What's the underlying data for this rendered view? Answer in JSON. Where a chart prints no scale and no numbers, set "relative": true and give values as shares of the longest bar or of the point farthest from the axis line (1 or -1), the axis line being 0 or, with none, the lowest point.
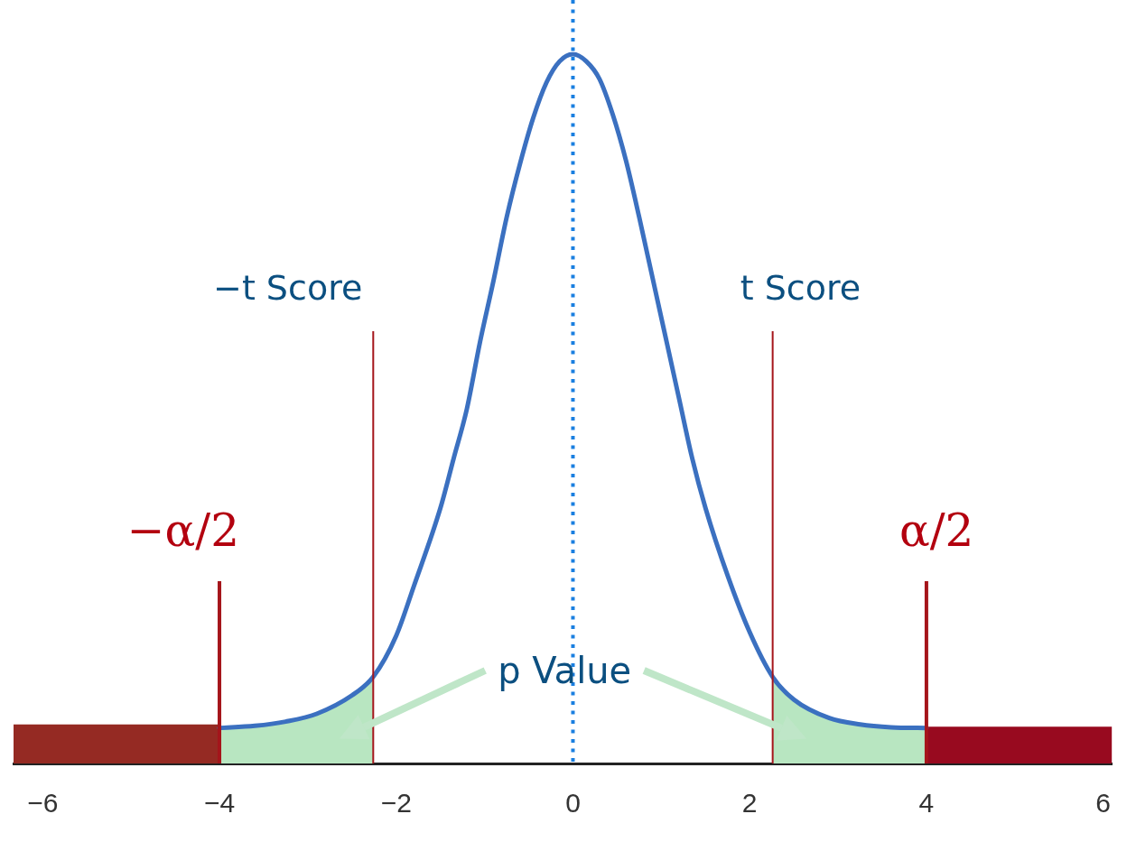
{
  "chart_data": {
    "type": "line",
    "relative": true,
    "marker": "none",
    "xlim": [
      -6.33,
      6.1
    ],
    "xticks": [
      {
        "value": -6,
        "label": "−6"
      },
      {
        "value": -4,
        "label": "−4"
      },
      {
        "value": -2,
        "label": "−2"
      },
      0,
      2,
      4,
      6
    ],
    "series": [
      {
        "type": "line",
        "color": "#3b70c0",
        "x": [
          -4,
          -3.6,
          -3.25,
          -2.9,
          -2.5,
          -2.26,
          -2,
          -1.8,
          -1.5,
          -1.35,
          -1.2,
          -1.05,
          -0.9,
          -0.75,
          -0.6,
          -0.45,
          -0.3,
          -0.15,
          0,
          0.15,
          0.3,
          0.45,
          0.6,
          0.75,
          0.9,
          1.05,
          1.2,
          1.35,
          1.5,
          1.75,
          2,
          2.26,
          2.5,
          2.9,
          3.25,
          3.6,
          4
        ],
        "values": [
          0.05,
          0.053,
          0.059,
          0.07,
          0.096,
          0.122,
          0.18,
          0.25,
          0.36,
          0.43,
          0.5,
          0.595,
          0.68,
          0.77,
          0.845,
          0.91,
          0.96,
          0.99,
          1,
          0.99,
          0.965,
          0.915,
          0.85,
          0.77,
          0.685,
          0.6,
          0.515,
          0.43,
          0.36,
          0.265,
          0.185,
          0.122,
          0.09,
          0.064,
          0.055,
          0.051,
          0.05
        ]
      },
      {
        "type": "area",
        "color": "#b8e6c1",
        "x": [
          -4,
          -3.6,
          -3.25,
          -2.9,
          -2.5,
          -2.26
        ],
        "values": [
          0.05,
          0.053,
          0.059,
          0.07,
          0.096,
          0.122
        ]
      },
      {
        "type": "area",
        "color": "#b8e6c1",
        "x": [
          2.26,
          2.5,
          2.9,
          3.25,
          3.6,
          4
        ],
        "values": [
          0.122,
          0.09,
          0.064,
          0.055,
          0.051,
          0.05
        ]
      },
      {
        "type": "area",
        "color": "#952a23",
        "x": [
          -6.33,
          -4
        ],
        "values": [
          0.055,
          0.055
        ]
      },
      {
        "type": "area",
        "color": "#980a1f",
        "x": [
          4,
          6.1
        ],
        "values": [
          0.052,
          0.052
        ]
      }
    ],
    "ref_lines": [
      {
        "axis": "x",
        "value": 0,
        "color": "#1a7fe0",
        "line_style": "dotted"
      },
      {
        "axis": "x",
        "value": -4,
        "label": "−α/2",
        "color": "#a5151b"
      },
      {
        "axis": "x",
        "value": -2.26,
        "label": "−t Score",
        "color": "#a5151b"
      },
      {
        "axis": "x",
        "value": 2.26,
        "label": "t Score",
        "color": "#a5151b"
      },
      {
        "axis": "x",
        "value": 4,
        "label": "α/2",
        "color": "#a5151b"
      }
    ],
    "annotations": [
      "p Value"
    ]
  }
}
